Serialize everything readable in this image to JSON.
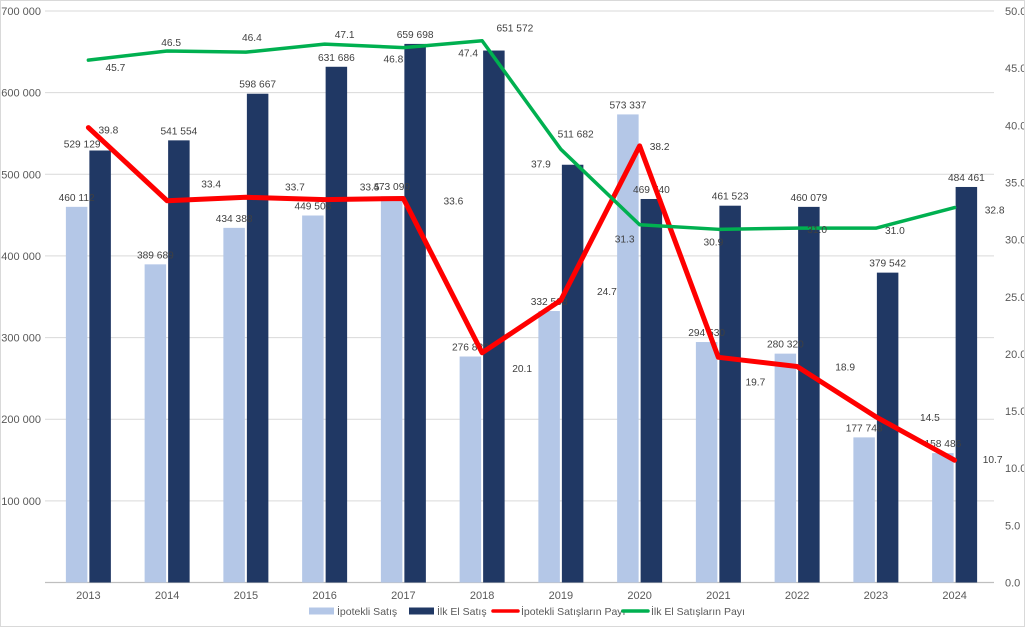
{
  "chart_data": {
    "type": "combo",
    "title": "",
    "categories": [
      "2013",
      "2014",
      "2015",
      "2016",
      "2017",
      "2018",
      "2019",
      "2020",
      "2021",
      "2022",
      "2023",
      "2024"
    ],
    "series": [
      {
        "name": "İpotekli Satış",
        "type": "bar",
        "axis": "left",
        "color": "#b4c7e7",
        "values": [
          460112,
          389689,
          434388,
          449508,
          473099,
          276820,
          332508,
          573337,
          294530,
          280320,
          177748,
          158486
        ],
        "labels": [
          "460 112",
          "389 689",
          "434 388",
          "449 508",
          "473 099",
          "276 820",
          "332 508",
          "573 337",
          "294 530",
          "280 320",
          "177 748",
          "158 486"
        ]
      },
      {
        "name": "İlk El Satış",
        "type": "bar",
        "axis": "left",
        "color": "#203864",
        "values": [
          529129,
          541554,
          598667,
          631686,
          659698,
          651572,
          511682,
          469740,
          461523,
          460079,
          379542,
          484461
        ],
        "labels": [
          "529 129",
          "541 554",
          "598 667",
          "631 686",
          "659 698",
          "651 572",
          "511 682",
          "469 740",
          "461 523",
          "460 079",
          "379 542",
          "484 461"
        ]
      },
      {
        "name": "İpotekli Satışların Payı",
        "type": "line",
        "axis": "right",
        "color": "#ff0000",
        "values": [
          39.8,
          33.4,
          33.7,
          33.5,
          33.6,
          20.1,
          24.7,
          38.2,
          19.7,
          18.9,
          14.5,
          10.7
        ],
        "labels": [
          "39.8",
          "33.4",
          "33.7",
          "33.5",
          "33.6",
          "20.1",
          "24.7",
          "38.2",
          "19.7",
          "18.9",
          "14.5",
          "10.7"
        ]
      },
      {
        "name": "İlk El Satışların Payı",
        "type": "line",
        "axis": "right",
        "color": "#00b050",
        "values": [
          45.7,
          46.5,
          46.4,
          47.1,
          46.8,
          47.4,
          37.9,
          31.3,
          30.9,
          31.0,
          31.0,
          32.8
        ],
        "labels": [
          "45.7",
          "46.5",
          "46.4",
          "47.1",
          "46.8",
          "47.4",
          "37.9",
          "31.3",
          "30.9",
          "31.0",
          "31.0",
          "32.8"
        ]
      }
    ],
    "left_axis": {
      "min": 0,
      "max": 700000,
      "step": 100000,
      "tick_labels": [
        "700 000",
        "600 000",
        "500 000",
        "400 000",
        "300 000",
        "200 000",
        "100 000"
      ]
    },
    "right_axis": {
      "min": 0,
      "max": 50,
      "step": 5,
      "tick_labels": [
        "50.0",
        "45.0",
        "40.0",
        "35.0",
        "30.0",
        "25.0",
        "20.0",
        "15.0",
        "10.0",
        "5.0",
        "0.0"
      ]
    },
    "legend": {
      "position": "bottom",
      "entries": [
        "İpotekli Satış",
        "İlk El Satış",
        "İpotekli Satışların Payı",
        "İlk El Satışların Payı"
      ]
    },
    "grid": true,
    "colors": {
      "gridline": "#d9d9d9",
      "axis_line": "#bfbfbf",
      "axis_text": "#595959",
      "data_label_text": "#404040"
    }
  }
}
